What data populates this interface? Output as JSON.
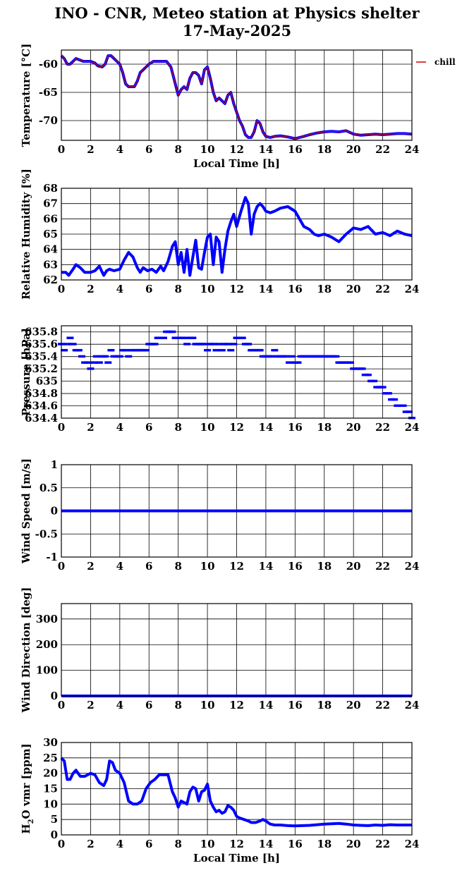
{
  "figure": {
    "title_line1": "INO - CNR, Meteo station at Physics shelter",
    "title_line2": "17-May-2025",
    "legend_label": "chill"
  },
  "colors": {
    "data": "#0000ff",
    "chill": "#cc0000",
    "grid": "#000000"
  },
  "chart_data": [
    {
      "type": "line",
      "id": "temperature",
      "ylabel": "Temperature [°C]",
      "xlabel": "Local Time [h]",
      "xlim": [
        0,
        24
      ],
      "ylim": [
        -73.5,
        -57.5
      ],
      "yticks": [
        -60,
        -65,
        -70
      ],
      "xticks": [
        0,
        2,
        4,
        6,
        8,
        10,
        12,
        14,
        16,
        18,
        20,
        22,
        24
      ],
      "series": [
        {
          "name": "chill",
          "x": [
            0,
            0.2,
            0.4,
            0.6,
            0.8,
            1.0,
            1.5,
            2.0,
            2.3,
            2.5,
            2.8,
            3.0,
            3.2,
            3.4,
            3.6,
            3.8,
            4.0,
            4.2,
            4.4,
            4.6,
            4.8,
            5.0,
            5.2,
            5.4,
            5.6,
            5.8,
            6.0,
            6.3,
            6.6,
            6.9,
            7.2,
            7.5,
            7.7,
            7.9,
            8.0,
            8.2,
            8.4,
            8.6,
            8.8,
            9.0,
            9.2,
            9.4,
            9.6,
            9.8,
            10.0,
            10.2,
            10.4,
            10.6,
            10.8,
            11.0,
            11.2,
            11.4,
            11.6,
            11.8,
            12.0,
            12.2,
            12.4,
            12.6,
            12.8,
            13.0,
            13.2,
            13.4,
            13.6,
            13.8,
            14.0,
            14.3,
            14.6,
            15.0,
            15.5,
            16.0,
            16.3,
            16.6,
            17.0,
            17.5,
            18.0,
            18.5,
            19.0,
            19.5,
            20.0,
            20.5,
            21.0,
            21.5,
            22.0,
            22.5,
            23.0,
            23.5,
            24.0
          ],
          "values": [
            -58.5,
            -59,
            -60,
            -60,
            -59.5,
            -59,
            -59.5,
            -59.5,
            -59.8,
            -60.3,
            -60.5,
            -60,
            -58.5,
            -58.5,
            -59,
            -59.5,
            -60,
            -61.5,
            -63.5,
            -64,
            -64,
            -64,
            -63,
            -61.5,
            -61,
            -60.5,
            -60,
            -59.5,
            -59.5,
            -59.5,
            -59.5,
            -60.5,
            -62.5,
            -64.5,
            -65.5,
            -64.5,
            -64,
            -64.5,
            -62.5,
            -61.5,
            -61.5,
            -62,
            -63.5,
            -61,
            -60.5,
            -62.5,
            -65,
            -66.5,
            -66,
            -66.5,
            -67,
            -65.5,
            -65,
            -67,
            -68.5,
            -70,
            -71,
            -72.5,
            -73,
            -73,
            -72,
            -70,
            -70.5,
            -72,
            -72.8,
            -73.0,
            -72.8,
            -72.7,
            -72.9,
            -73.2,
            -73.0,
            -72.8,
            -72.5,
            -72.2,
            -72.0,
            -71.9,
            -72.0,
            -71.8,
            -72.4,
            -72.6,
            -72.5,
            -72.4,
            -72.5,
            -72.4,
            -72.3,
            -72.3,
            -72.4
          ]
        }
      ]
    },
    {
      "type": "line",
      "id": "humidity",
      "ylabel": "Relative Humidity [%]",
      "xlabel": "",
      "xlim": [
        0,
        24
      ],
      "ylim": [
        62,
        68
      ],
      "yticks": [
        62,
        63,
        64,
        65,
        66,
        67,
        68
      ],
      "xticks": [
        0,
        2,
        4,
        6,
        8,
        10,
        12,
        14,
        16,
        18,
        20,
        22,
        24
      ],
      "series": [
        {
          "x": [
            0,
            0.3,
            0.5,
            0.8,
            1.0,
            1.3,
            1.6,
            2.0,
            2.3,
            2.6,
            2.9,
            3.1,
            3.3,
            3.6,
            4.0,
            4.3,
            4.6,
            4.9,
            5.2,
            5.4,
            5.6,
            5.9,
            6.2,
            6.5,
            6.8,
            7.0,
            7.3,
            7.6,
            7.8,
            8.0,
            8.2,
            8.4,
            8.6,
            8.8,
            9.0,
            9.2,
            9.4,
            9.6,
            9.8,
            10.0,
            10.2,
            10.4,
            10.6,
            10.8,
            11.0,
            11.2,
            11.4,
            11.6,
            11.8,
            12.0,
            12.3,
            12.6,
            12.8,
            13.0,
            13.2,
            13.4,
            13.6,
            13.8,
            14.0,
            14.3,
            14.6,
            15.0,
            15.5,
            16.0,
            16.3,
            16.6,
            17.0,
            17.3,
            17.6,
            18.0,
            18.5,
            19.0,
            19.5,
            20.0,
            20.5,
            21.0,
            21.5,
            22.0,
            22.5,
            23.0,
            23.5,
            24.0
          ],
          "values": [
            62.5,
            62.5,
            62.3,
            62.7,
            63.0,
            62.8,
            62.5,
            62.5,
            62.6,
            62.9,
            62.3,
            62.6,
            62.7,
            62.6,
            62.7,
            63.3,
            63.8,
            63.5,
            62.8,
            62.5,
            62.8,
            62.6,
            62.7,
            62.5,
            62.9,
            62.6,
            63.2,
            64.2,
            64.5,
            63.0,
            63.8,
            62.5,
            64.0,
            62.3,
            63.5,
            64.6,
            62.8,
            62.7,
            63.8,
            64.8,
            65.0,
            63.0,
            64.8,
            64.5,
            62.5,
            64.0,
            65.2,
            65.8,
            66.3,
            65.5,
            66.5,
            67.4,
            67.0,
            65.0,
            66.3,
            66.8,
            67.0,
            66.8,
            66.5,
            66.4,
            66.5,
            66.7,
            66.8,
            66.5,
            66.0,
            65.5,
            65.3,
            65.0,
            64.9,
            65.0,
            64.8,
            64.5,
            65.0,
            65.4,
            65.3,
            65.5,
            65.0,
            65.1,
            64.9,
            65.2,
            65.0,
            64.9
          ]
        }
      ]
    },
    {
      "type": "scatter",
      "id": "pressure",
      "ylabel": "Pressure [hPa]",
      "xlabel": "",
      "xlim": [
        0,
        24
      ],
      "ylim": [
        634.4,
        635.9
      ],
      "yticks": [
        635.8,
        635.6,
        635.4,
        635.2,
        635,
        634.8,
        634.6,
        634.4
      ],
      "yticklabels": [
        "635.8",
        "635.6",
        "635.4",
        "635.2",
        "635",
        "634.8",
        "634.6",
        "634.4"
      ],
      "xticks": [
        0,
        2,
        4,
        6,
        8,
        10,
        12,
        14,
        16,
        18,
        20,
        22,
        24
      ],
      "series": [
        {
          "x": [
            0,
            0.2,
            0.4,
            0.6,
            0.8,
            1.0,
            1.2,
            1.4,
            1.6,
            1.8,
            2.0,
            2.2,
            2.4,
            2.6,
            2.8,
            3.0,
            3.2,
            3.4,
            3.6,
            3.8,
            4.0,
            4.2,
            4.4,
            4.6,
            4.8,
            5.0,
            5.2,
            5.4,
            5.6,
            5.8,
            6.0,
            6.2,
            6.4,
            6.6,
            6.8,
            7.0,
            7.2,
            7.4,
            7.6,
            7.8,
            8.0,
            8.2,
            8.4,
            8.6,
            8.8,
            9.0,
            9.2,
            9.4,
            9.6,
            9.8,
            10.0,
            10.2,
            10.4,
            10.6,
            10.8,
            11.0,
            11.2,
            11.4,
            11.6,
            11.8,
            12.0,
            12.2,
            12.4,
            12.6,
            12.8,
            13.0,
            13.2,
            13.4,
            13.6,
            13.8,
            14.0,
            14.2,
            14.4,
            14.6,
            14.8,
            15.0,
            15.2,
            15.4,
            15.6,
            15.8,
            16.0,
            16.2,
            16.4,
            16.6,
            16.8,
            17.0,
            17.2,
            17.4,
            17.6,
            17.8,
            18.0,
            18.2,
            18.4,
            18.6,
            18.8,
            19.0,
            19.2,
            19.4,
            19.6,
            19.8,
            20.0,
            20.2,
            20.4,
            20.6,
            20.8,
            21.0,
            21.2,
            21.4,
            21.6,
            21.8,
            22.0,
            22.2,
            22.4,
            22.6,
            22.8,
            23.0,
            23.2,
            23.4,
            23.6,
            23.8,
            24.0
          ],
          "values": [
            635.6,
            635.5,
            635.6,
            635.7,
            635.6,
            635.5,
            635.5,
            635.4,
            635.3,
            635.3,
            635.2,
            635.3,
            635.4,
            635.3,
            635.4,
            635.4,
            635.3,
            635.5,
            635.4,
            635.4,
            635.4,
            635.5,
            635.5,
            635.4,
            635.5,
            635.5,
            635.5,
            635.5,
            635.5,
            635.5,
            635.6,
            635.6,
            635.6,
            635.7,
            635.7,
            635.7,
            635.8,
            635.8,
            635.8,
            635.7,
            635.7,
            635.7,
            635.7,
            635.6,
            635.7,
            635.7,
            635.6,
            635.6,
            635.6,
            635.6,
            635.5,
            635.6,
            635.6,
            635.5,
            635.6,
            635.5,
            635.6,
            635.6,
            635.5,
            635.6,
            635.7,
            635.7,
            635.7,
            635.6,
            635.6,
            635.5,
            635.5,
            635.5,
            635.5,
            635.4,
            635.4,
            635.4,
            635.4,
            635.5,
            635.4,
            635.4,
            635.4,
            635.4,
            635.3,
            635.4,
            635.3,
            635.3,
            635.4,
            635.4,
            635.4,
            635.4,
            635.4,
            635.4,
            635.4,
            635.4,
            635.4,
            635.4,
            635.4,
            635.4,
            635.4,
            635.3,
            635.3,
            635.3,
            635.3,
            635.3,
            635.2,
            635.2,
            635.2,
            635.2,
            635.1,
            635.1,
            635.0,
            635.0,
            634.9,
            634.9,
            634.9,
            634.8,
            634.8,
            634.7,
            634.7,
            634.6,
            634.6,
            634.6,
            634.5,
            634.5,
            634.4
          ]
        }
      ]
    },
    {
      "type": "line",
      "id": "wind_speed",
      "ylabel": "Wind Speed [m/s]",
      "xlabel": "",
      "xlim": [
        0,
        24
      ],
      "ylim": [
        -1,
        1
      ],
      "yticks": [
        1,
        0.5,
        0,
        -0.5,
        -1
      ],
      "yticklabels": [
        "1",
        "0.5",
        "0",
        "-0.5",
        "-1"
      ],
      "xticks": [
        0,
        2,
        4,
        6,
        8,
        10,
        12,
        14,
        16,
        18,
        20,
        22,
        24
      ],
      "series": [
        {
          "x": [
            0,
            24
          ],
          "values": [
            0,
            0
          ]
        }
      ]
    },
    {
      "type": "line",
      "id": "wind_direction",
      "ylabel": "Wind Direction [deg]",
      "xlabel": "",
      "xlim": [
        0,
        24
      ],
      "ylim": [
        0,
        360
      ],
      "yticks": [
        300,
        200,
        100,
        0
      ],
      "xticks": [
        0,
        2,
        4,
        6,
        8,
        10,
        12,
        14,
        16,
        18,
        20,
        22,
        24
      ],
      "series": [
        {
          "x": [
            0,
            24
          ],
          "values": [
            0,
            0
          ]
        }
      ]
    },
    {
      "type": "line",
      "id": "h2o",
      "ylabel": "H2O vmr [ppm]",
      "xlabel": "Local Time [h]",
      "xlim": [
        0,
        24
      ],
      "ylim": [
        0,
        30
      ],
      "yticks": [
        30,
        25,
        20,
        15,
        10,
        5,
        0
      ],
      "xticks": [
        0,
        2,
        4,
        6,
        8,
        10,
        12,
        14,
        16,
        18,
        20,
        22,
        24
      ],
      "series": [
        {
          "x": [
            0,
            0.2,
            0.4,
            0.6,
            0.8,
            1.0,
            1.3,
            1.6,
            2.0,
            2.3,
            2.6,
            2.9,
            3.1,
            3.3,
            3.5,
            3.7,
            4.0,
            4.3,
            4.6,
            4.9,
            5.2,
            5.5,
            5.8,
            6.1,
            6.4,
            6.7,
            7.0,
            7.3,
            7.6,
            7.8,
            8.0,
            8.2,
            8.4,
            8.6,
            8.8,
            9.0,
            9.2,
            9.4,
            9.6,
            9.8,
            10.0,
            10.2,
            10.4,
            10.6,
            10.8,
            11.0,
            11.2,
            11.4,
            11.6,
            11.8,
            12.0,
            12.2,
            12.5,
            12.8,
            13.0,
            13.3,
            13.6,
            13.8,
            14.0,
            14.3,
            14.6,
            15.0,
            15.5,
            16.0,
            16.5,
            17.0,
            17.5,
            18.0,
            18.5,
            19.0,
            19.5,
            20.0,
            20.5,
            21.0,
            21.5,
            22.0,
            22.5,
            23.0,
            23.5,
            24.0
          ],
          "values": [
            25,
            24,
            18,
            18,
            20,
            21,
            19,
            19,
            20,
            19.5,
            17,
            16,
            18,
            24,
            23.5,
            21,
            20,
            17,
            11,
            10,
            10,
            11,
            15,
            17,
            18,
            19.5,
            19.5,
            19.5,
            14,
            12,
            9,
            11,
            10.5,
            10,
            14,
            15.5,
            15,
            11,
            14,
            14.5,
            16.5,
            11,
            9,
            7.5,
            8,
            7,
            7.5,
            9.5,
            9,
            8,
            6,
            5.5,
            5,
            4.5,
            4,
            4,
            4.5,
            5,
            4.5,
            3.5,
            3.2,
            3.2,
            3.0,
            2.9,
            3.0,
            3.1,
            3.3,
            3.5,
            3.6,
            3.7,
            3.5,
            3.2,
            3.1,
            3.0,
            3.2,
            3.1,
            3.3,
            3.2,
            3.2,
            3.2
          ]
        }
      ]
    }
  ]
}
